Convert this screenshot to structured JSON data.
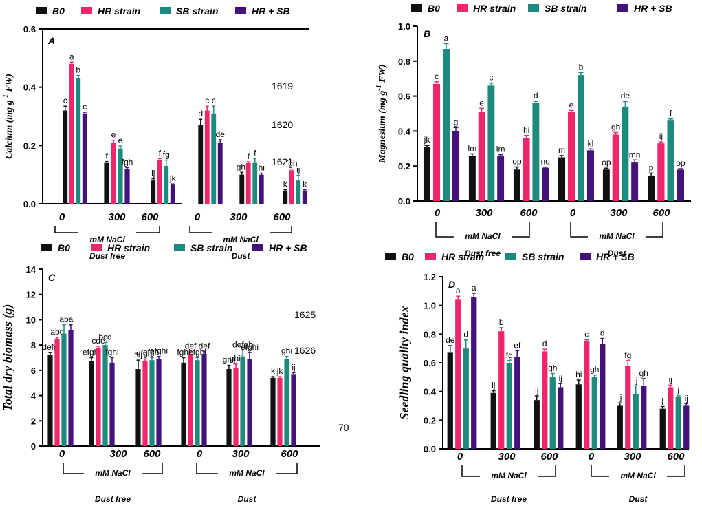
{
  "legend": [
    "B0",
    "HR strain",
    "SB strain",
    "HR + SB"
  ],
  "colors": [
    "#111111",
    "#f0266c",
    "#1d8a7e",
    "#43127a"
  ],
  "floating_numbers": [
    "70"
  ],
  "chart_data": [
    {
      "type": "bar",
      "panel": "A",
      "ylabel": "Calcium (mg g-1 FW)",
      "ylabel_main": "Calcium (mg g",
      "ylabel_sup": "-1",
      "ylabel_end": " FW)",
      "ylim": [
        0,
        0.6
      ],
      "yticks": [
        "0.0",
        "0.2",
        "0.4",
        "0.6"
      ],
      "categories": [
        "0",
        "300",
        "600",
        "0",
        "300",
        "600"
      ],
      "groups": [
        {
          "label": "mM NaCl",
          "name": "Dust free"
        },
        {
          "label": "mM NaCl",
          "name": "Dust"
        }
      ],
      "series": [
        {
          "name": "B0",
          "values": [
            0.32,
            0.14,
            0.08,
            0.27,
            0.1,
            0.045
          ],
          "errors": [
            0.015,
            0.005,
            0.006,
            0.02,
            0.008,
            0.003
          ],
          "letters": [
            "c",
            "f",
            "ij",
            "d",
            "ghi",
            "k"
          ]
        },
        {
          "name": "HR strain",
          "values": [
            0.48,
            0.21,
            0.15,
            0.32,
            0.14,
            0.115
          ],
          "errors": [
            0.006,
            0.008,
            0.005,
            0.015,
            0.004,
            0.004
          ],
          "letters": [
            "a",
            "e",
            "f",
            "c",
            "f",
            "fgh"
          ]
        },
        {
          "name": "SB strain",
          "values": [
            0.43,
            0.19,
            0.13,
            0.31,
            0.14,
            0.08
          ],
          "errors": [
            0.01,
            0.008,
            0.02,
            0.025,
            0.015,
            0.018
          ],
          "letters": [
            "b",
            "e",
            "fg",
            "c",
            "f",
            "ij"
          ]
        },
        {
          "name": "HR + SB",
          "values": [
            0.31,
            0.12,
            0.065,
            0.21,
            0.1,
            0.045
          ],
          "errors": [
            0.004,
            0.004,
            0.003,
            0.01,
            0.005,
            0.003
          ],
          "letters": [
            "c",
            "fgh",
            "jk",
            "de",
            "hi",
            "k"
          ]
        }
      ],
      "side_labels": [
        "1619",
        "1620",
        "1621"
      ]
    },
    {
      "type": "bar",
      "panel": "B",
      "ylabel": "Magnesium (mg g-1 FW)",
      "ylabel_main": "Magnesium (mg g",
      "ylabel_sup": "-1",
      "ylabel_end": " FW)",
      "ylim": [
        0,
        1.0
      ],
      "yticks": [
        "0.0",
        "0.2",
        "0.4",
        "0.6",
        "0.8",
        "1.0"
      ],
      "categories": [
        "0",
        "300",
        "600",
        "0",
        "300",
        "600"
      ],
      "groups": [
        {
          "label": "mM NaCl",
          "name": "Dust free"
        },
        {
          "label": "mM NaCl",
          "name": "Dust"
        }
      ],
      "series": [
        {
          "name": "B0",
          "values": [
            0.31,
            0.26,
            0.18,
            0.25,
            0.18,
            0.145
          ],
          "errors": [
            0.008,
            0.01,
            0.015,
            0.01,
            0.008,
            0.015
          ],
          "letters": [
            "jk",
            "lm",
            "op",
            "m",
            "op",
            "p"
          ]
        },
        {
          "name": "HR strain",
          "values": [
            0.67,
            0.51,
            0.36,
            0.51,
            0.38,
            0.33
          ],
          "errors": [
            0.012,
            0.02,
            0.015,
            0.008,
            0.012,
            0.008
          ],
          "letters": [
            "c",
            "e",
            "hi",
            "e",
            "gh",
            "ij"
          ]
        },
        {
          "name": "SB strain",
          "values": [
            0.87,
            0.66,
            0.56,
            0.72,
            0.54,
            0.46
          ],
          "errors": [
            0.03,
            0.015,
            0.01,
            0.015,
            0.03,
            0.01
          ],
          "letters": [
            "a",
            "c",
            "d",
            "b",
            "de",
            "f"
          ]
        },
        {
          "name": "HR + SB",
          "values": [
            0.4,
            0.26,
            0.19,
            0.29,
            0.22,
            0.18
          ],
          "errors": [
            0.02,
            0.005,
            0.004,
            0.008,
            0.015,
            0.005
          ],
          "letters": [
            "g",
            "lm",
            "no",
            "kl",
            "mn",
            "op"
          ]
        }
      ],
      "side_labels": []
    },
    {
      "type": "bar",
      "panel": "C",
      "ylabel": "Total dry biomass (g)",
      "ylim": [
        0,
        14
      ],
      "yticks": [
        "0",
        "2",
        "4",
        "6",
        "8",
        "10",
        "12",
        "14"
      ],
      "categories": [
        "0",
        "300",
        "600",
        "0",
        "300",
        "600"
      ],
      "groups": [
        {
          "label": "mM NaCl",
          "name": "Dust free"
        },
        {
          "label": "mM NaCl",
          "name": "Dust"
        }
      ],
      "series": [
        {
          "name": "B0",
          "values": [
            7.2,
            6.7,
            6.1,
            6.6,
            6.1,
            5.4
          ],
          "errors": [
            0.2,
            0.3,
            0.7,
            0.4,
            0.3,
            0.1
          ],
          "letters": [
            "defg",
            "efghi",
            "hij",
            "fghi",
            "ghij",
            "k"
          ]
        },
        {
          "name": "HR strain",
          "values": [
            8.5,
            7.8,
            6.7,
            7.3,
            6.2,
            5.4
          ],
          "errors": [
            0.1,
            0.1,
            0.2,
            0.2,
            0.3,
            0.1
          ],
          "letters": [
            "abc",
            "cde",
            "efghi",
            "def",
            "ghij",
            "jk"
          ]
        },
        {
          "name": "SB strain",
          "values": [
            8.9,
            8.0,
            6.8,
            6.8,
            7.1,
            6.9
          ],
          "errors": [
            0.7,
            0.2,
            0.2,
            0.2,
            0.5,
            0.2
          ],
          "letters": [
            "ab",
            "bcd",
            "efghi",
            "efghi",
            "defgh",
            "ghi"
          ]
        },
        {
          "name": "HR + SB",
          "values": [
            9.2,
            6.6,
            6.9,
            7.3,
            6.9,
            5.7
          ],
          "errors": [
            0.4,
            0.4,
            0.2,
            0.2,
            0.5,
            0.1
          ],
          "letters": [
            "a",
            "fghi",
            "efghi",
            "def",
            "efghi",
            "ij"
          ]
        }
      ],
      "side_labels": [
        "1625",
        "1626"
      ]
    },
    {
      "type": "bar",
      "panel": "D",
      "ylabel": "Seedling quality index",
      "ylim": [
        0,
        1.2
      ],
      "yticks": [
        "0.0",
        "0.2",
        "0.4",
        "0.6",
        "0.8",
        "1.0",
        "1.2"
      ],
      "categories": [
        "0",
        "300",
        "600",
        "0",
        "300",
        "600"
      ],
      "groups": [
        {
          "label": "mM NaCl",
          "name": "Dust free"
        },
        {
          "label": "mM NaCl",
          "name": "Dust"
        }
      ],
      "series": [
        {
          "name": "B0",
          "values": [
            0.67,
            0.39,
            0.34,
            0.45,
            0.3,
            0.28
          ],
          "errors": [
            0.05,
            0.015,
            0.03,
            0.03,
            0.02,
            0.015
          ],
          "letters": [
            "de",
            "ij",
            "ij",
            "hi",
            "ij",
            "j"
          ]
        },
        {
          "name": "HR strain",
          "values": [
            1.04,
            0.82,
            0.68,
            0.75,
            0.58,
            0.43
          ],
          "errors": [
            0.025,
            0.025,
            0.015,
            0.01,
            0.035,
            0.015
          ],
          "letters": [
            "a",
            "b",
            "d",
            "c",
            "fg",
            "ij"
          ]
        },
        {
          "name": "SB strain",
          "values": [
            0.7,
            0.6,
            0.5,
            0.5,
            0.38,
            0.36
          ],
          "errors": [
            0.06,
            0.015,
            0.025,
            0.015,
            0.06,
            0.01
          ],
          "letters": [
            "d",
            "fg",
            "gh",
            "gh",
            "ij",
            "j"
          ]
        },
        {
          "name": "HR + SB",
          "values": [
            1.06,
            0.64,
            0.43,
            0.73,
            0.44,
            0.3
          ],
          "errors": [
            0.025,
            0.045,
            0.025,
            0.04,
            0.05,
            0.015
          ],
          "letters": [
            "a",
            "ef",
            "ij",
            "d",
            "gh",
            "ij"
          ]
        }
      ],
      "side_labels": []
    }
  ]
}
